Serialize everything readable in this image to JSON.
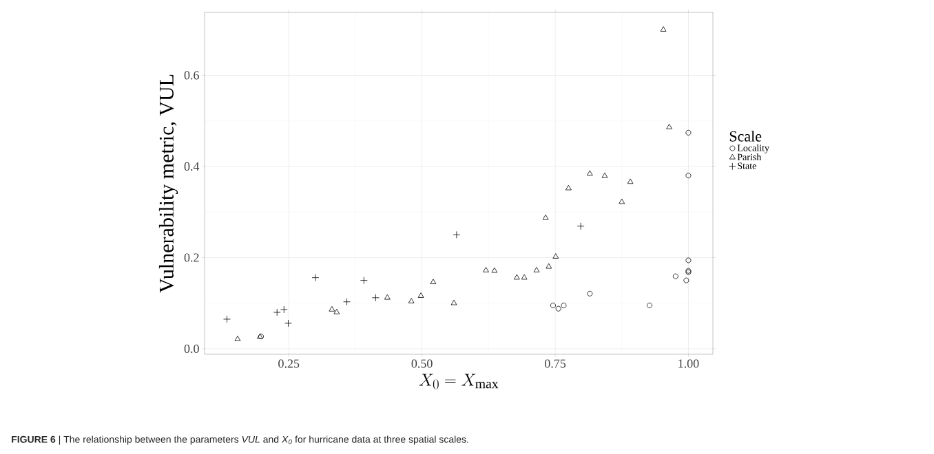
{
  "chart_data": {
    "type": "scatter",
    "xlabel": "X_0 = X_{\\max}",
    "ylabel": "Vulnerability metric, VUL",
    "legend_title": "Scale",
    "annotations": [
      "**FIGURE 6** | The relationship between the parameters *VUL* and *X₀* for hurricane data at three spatial scales."
    ],
    "xlim": [
      0.092,
      1.046
    ],
    "ylim": [
      -0.012,
      0.738
    ],
    "xticks": [
      {
        "value": 0.25,
        "label": "0.25"
      },
      {
        "value": 0.5,
        "label": "0.50"
      },
      {
        "value": 0.75,
        "label": "0.75"
      },
      {
        "value": 1.0,
        "label": "1.00"
      }
    ],
    "yticks": [
      {
        "value": 0.0,
        "label": "0.0"
      },
      {
        "value": 0.2,
        "label": "0.2"
      },
      {
        "value": 0.4,
        "label": "0.4"
      },
      {
        "value": 0.6,
        "label": "0.6"
      }
    ],
    "grid": true,
    "legend": "right",
    "series": [
      {
        "name": "Locality",
        "color": "#000000",
        "marker": "circle",
        "x": [
          0.198,
          0.746,
          0.756,
          0.766,
          0.815,
          0.927,
          0.976,
          0.996,
          1.0,
          1.0,
          1.0,
          1.0,
          1.0
        ],
        "values": [
          0.027,
          0.095,
          0.088,
          0.095,
          0.121,
          0.095,
          0.159,
          0.15,
          0.168,
          0.171,
          0.194,
          0.38,
          0.474
        ]
      },
      {
        "name": "Parish",
        "color": "#000000",
        "marker": "triangle",
        "x": [
          0.154,
          0.196,
          0.331,
          0.34,
          0.435,
          0.48,
          0.498,
          0.521,
          0.56,
          0.62,
          0.636,
          0.678,
          0.692,
          0.715,
          0.738,
          0.751,
          0.732,
          0.775,
          0.815,
          0.843,
          0.875,
          0.891,
          0.953,
          0.964
        ],
        "values": [
          0.021,
          0.026,
          0.086,
          0.08,
          0.112,
          0.104,
          0.116,
          0.146,
          0.1,
          0.172,
          0.171,
          0.156,
          0.156,
          0.172,
          0.18,
          0.202,
          0.287,
          0.352,
          0.384,
          0.379,
          0.322,
          0.366,
          0.7,
          0.486
        ]
      },
      {
        "name": "State",
        "color": "#000000",
        "marker": "cross",
        "x": [
          0.134,
          0.228,
          0.241,
          0.249,
          0.3,
          0.359,
          0.391,
          0.413,
          0.565,
          0.798
        ],
        "values": [
          0.065,
          0.08,
          0.086,
          0.056,
          0.156,
          0.103,
          0.15,
          0.112,
          0.25,
          0.269
        ]
      }
    ]
  }
}
